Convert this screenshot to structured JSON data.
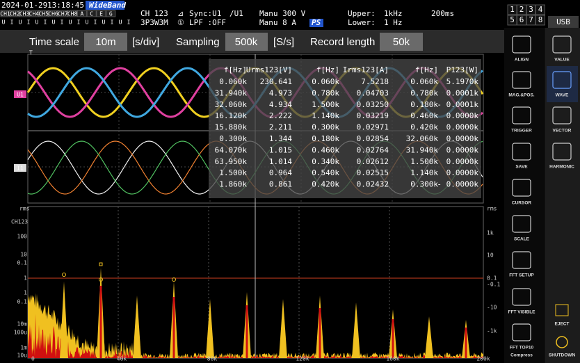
{
  "status": {
    "date": "2024-01-29",
    "time": "13:18:45",
    "mode": "WideBand",
    "channels": [
      "CH1",
      "CH2",
      "CH3",
      "CH4",
      "CH5",
      "CH6",
      "CH7",
      "CH8",
      "A",
      "C",
      "E",
      "G"
    ],
    "channel_kinds": [
      "U",
      "I",
      "U",
      "I",
      "U",
      "I",
      "U",
      "I",
      "U",
      "I",
      "U",
      "I",
      "U",
      "I",
      "U",
      "I"
    ],
    "ch": "CH 123",
    "wiring": "3P3W3M",
    "sync_icon": "⊿",
    "sync": "Sync:U1",
    "sync_src": "/U1",
    "num_icon": "①",
    "lpf": "LPF :OFF",
    "u_range": "Manu 300 V",
    "i_range": "Manu   8 A",
    "ps": "PS",
    "upper_label": "Upper:",
    "upper": "1kHz",
    "lower_label": "Lower:",
    "lower": "1 Hz",
    "period": "200ms",
    "pages": [
      "1",
      "2",
      "3",
      "4",
      "5",
      "6",
      "7",
      "8"
    ],
    "usb": "USB"
  },
  "toolbar": {
    "time_scale_label": "Time scale",
    "time_scale": "10m",
    "time_scale_unit": "[s/div]",
    "sampling_label": "Sampling",
    "sampling": "500k",
    "sampling_unit": "[S/s]",
    "record_label": "Record length",
    "record": "50k"
  },
  "waveform": {
    "trigger": "T",
    "u_marker": "U1",
    "i_marker": "I1"
  },
  "table": {
    "headers": [
      "f[Hz]",
      "Urms123[V]",
      "f[Hz]",
      "Irms123[A]",
      "f[Hz]",
      "P123[W]"
    ],
    "rows": [
      [
        "0.060k",
        "230.641",
        "0.060k",
        "7.5218",
        "0.060k",
        "5.1970k"
      ],
      [
        "31.940k",
        "4.973",
        "0.780k",
        "0.04703",
        "0.780k",
        "0.0001k"
      ],
      [
        "32.060k",
        "4.934",
        "1.500k",
        "0.03250",
        "0.180k",
        "- 0.0001k"
      ],
      [
        "16.120k",
        "2.222",
        "1.140k",
        "0.03219",
        "0.460k",
        "0.0000k"
      ],
      [
        "15.880k",
        "2.211",
        "0.300k",
        "0.02971",
        "0.420k",
        "0.0000k"
      ],
      [
        "0.300k",
        "1.344",
        "0.180k",
        "0.02854",
        "32.060k",
        "0.0000k"
      ],
      [
        "64.070k",
        "1.015",
        "0.460k",
        "0.02764",
        "31.940k",
        "0.0000k"
      ],
      [
        "63.950k",
        "1.014",
        "0.340k",
        "0.02612",
        "1.500k",
        "0.0000k"
      ],
      [
        "1.500k",
        "0.964",
        "0.540k",
        "0.02515",
        "1.140k",
        "0.0000k"
      ],
      [
        "1.860k",
        "0.861",
        "0.420k",
        "0.02432",
        "0.300k",
        "- 0.0000k"
      ]
    ]
  },
  "fft": {
    "left_unit": "rms",
    "channel": "CH123",
    "left_ticks": [
      "100",
      "10",
      "0.1",
      "1",
      "1",
      "0.1",
      "10m",
      "100u",
      "1m",
      "10u"
    ],
    "right_unit": "rms",
    "right_ticks": [
      "1k",
      "10",
      "0.1",
      "-0.1",
      "-10",
      "-1k"
    ],
    "x_ticks": [
      "0",
      "40k",
      "80k",
      "120k",
      "160k",
      "200k"
    ]
  },
  "menu": {
    "items": [
      "ALIGN",
      "MAG.&POS.",
      "TRIGGER",
      "SAVE",
      "CURSOR",
      "SCALE",
      "FFT SETUP",
      "FFT VISIBLE",
      "FFT TOP10"
    ],
    "compress": "Compress",
    "views": [
      "VALUE",
      "WAVE",
      "VECTOR",
      "HARMONIC"
    ],
    "eject": "EJECT",
    "shutdown": "SHUTDOWN"
  }
}
